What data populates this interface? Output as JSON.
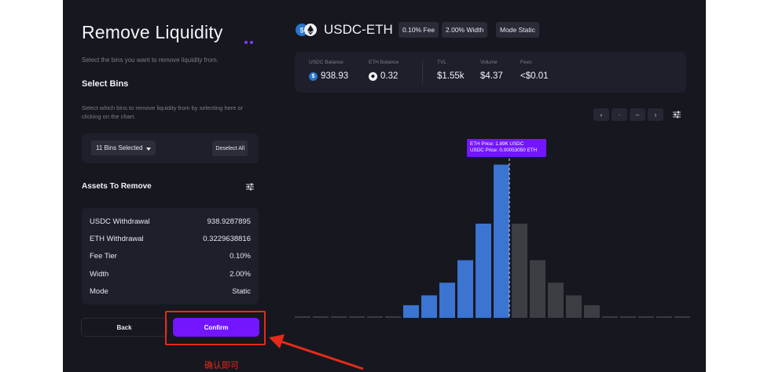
{
  "panel": {
    "title": "Remove Liquidity",
    "subtitle": "Select the bins you want to remove liquidity from.",
    "select_bins_heading": "Select Bins",
    "select_bins_description": "Select which bins to remove liquidity from by selecting here or clicking on the chart.",
    "bins_dropdown_label": "11 Bins Selected",
    "deselect_label": "Deselect All",
    "assets_heading": "Assets To Remove",
    "assets": [
      {
        "label": "USDC Withdrawal",
        "value": "938.9287895"
      },
      {
        "label": "ETH Withdrawal",
        "value": "0.3229638816"
      },
      {
        "label": "Fee Tier",
        "value": "0.10%"
      },
      {
        "label": "Width",
        "value": "2.00%"
      },
      {
        "label": "Mode",
        "value": "Static"
      }
    ],
    "back_label": "Back",
    "confirm_label": "Confirm"
  },
  "annotation": {
    "text": "确认即可",
    "color": "#e62a1a"
  },
  "pool": {
    "pair": "USDC-ETH",
    "tags": [
      "0.10% Fee",
      "2.00% Width",
      "Mode Static"
    ],
    "stats": [
      {
        "label": "USDC Balance",
        "value": "938.93",
        "icon": "usdc-icon"
      },
      {
        "label": "ETH Balance",
        "value": "0.32",
        "icon": "eth-icon"
      },
      {
        "label": "TVL",
        "value": "$1.55k"
      },
      {
        "label": "Volume",
        "value": "$4.37"
      },
      {
        "label": "Fees",
        "value": "<$0.01"
      }
    ],
    "tooltip": {
      "line1": "ETH Price:  1.89K USDC",
      "line2": "USDC Price:  0.00053050 ETH"
    }
  },
  "colors": {
    "accent": "#7316ff",
    "usdc_bar": "#3b74d1",
    "eth_bar": "#3d3e44",
    "empty_bin": "#3a3b45",
    "background": "#16171f"
  },
  "chart_data": {
    "type": "bar",
    "bins": [
      {
        "value": 0,
        "token": "empty"
      },
      {
        "value": 0,
        "token": "empty"
      },
      {
        "value": 0,
        "token": "empty"
      },
      {
        "value": 0,
        "token": "empty"
      },
      {
        "value": 0,
        "token": "empty"
      },
      {
        "value": 0,
        "token": "empty"
      },
      {
        "value": 9,
        "token": "USDC"
      },
      {
        "value": 16,
        "token": "USDC"
      },
      {
        "value": 25,
        "token": "USDC"
      },
      {
        "value": 41,
        "token": "USDC"
      },
      {
        "value": 67,
        "token": "USDC"
      },
      {
        "value": 109,
        "token": "USDC"
      },
      {
        "value": 67,
        "token": "ETH"
      },
      {
        "value": 41,
        "token": "ETH"
      },
      {
        "value": 25,
        "token": "ETH"
      },
      {
        "value": 16,
        "token": "ETH"
      },
      {
        "value": 9,
        "token": "ETH"
      },
      {
        "value": 0,
        "token": "empty"
      },
      {
        "value": 0,
        "token": "empty"
      },
      {
        "value": 0,
        "token": "empty"
      },
      {
        "value": 0,
        "token": "empty"
      },
      {
        "value": 0,
        "token": "empty"
      }
    ],
    "current_price_bin": 11,
    "ylim": [
      0,
      120
    ],
    "grid": false
  }
}
